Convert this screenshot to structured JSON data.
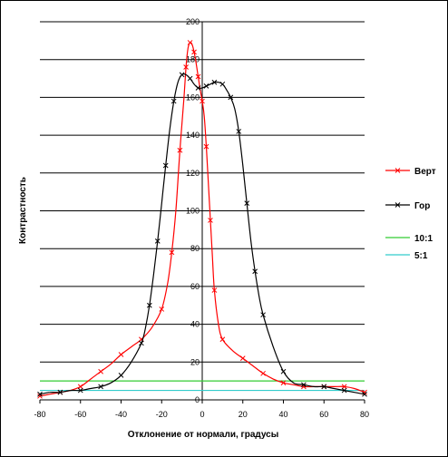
{
  "chart_data": {
    "type": "line",
    "xlabel": "Отклонение от нормали, градусы",
    "ylabel": "Контрастность",
    "xlim": [
      -80,
      80
    ],
    "ylim": [
      0,
      200
    ],
    "xticks": [
      "-80",
      "-60",
      "-40",
      "-20",
      "0",
      "20",
      "40",
      "60",
      "80"
    ],
    "yticks": [
      "0",
      "20",
      "40",
      "60",
      "80",
      "100",
      "120",
      "140",
      "160",
      "180",
      "200"
    ],
    "grid": "horizontal",
    "legend_position": "right",
    "series": [
      {
        "name": "Верт",
        "color": "#ff0000",
        "marker": "x",
        "x": [
          -80,
          -75,
          -70,
          -65,
          -60,
          -55,
          -50,
          -45,
          -40,
          -35,
          -30,
          -25,
          -20,
          -17,
          -15,
          -13,
          -11,
          -9,
          -8,
          -7,
          -6,
          -5,
          -4,
          -3,
          -2,
          -1,
          0,
          1,
          2,
          3,
          4,
          5,
          6,
          8,
          10,
          15,
          20,
          25,
          30,
          35,
          40,
          45,
          50,
          55,
          60,
          65,
          70,
          75,
          80
        ],
        "y": [
          2,
          3,
          4,
          5,
          7,
          11,
          15,
          19,
          24,
          28,
          32,
          38,
          48,
          62,
          78,
          100,
          132,
          160,
          176,
          186,
          189,
          188,
          184,
          178,
          171,
          164,
          158,
          150,
          134,
          115,
          95,
          76,
          58,
          40,
          32,
          26,
          22,
          18,
          14,
          11,
          9,
          8,
          7,
          7,
          7,
          7,
          7,
          6,
          4
        ]
      },
      {
        "name": "Гор",
        "color": "#000000",
        "marker": "x",
        "x": [
          -80,
          -75,
          -70,
          -65,
          -60,
          -55,
          -50,
          -45,
          -40,
          -35,
          -30,
          -28,
          -26,
          -24,
          -22,
          -20,
          -18,
          -16,
          -14,
          -12,
          -10,
          -8,
          -6,
          -4,
          -2,
          0,
          2,
          4,
          6,
          8,
          10,
          12,
          14,
          16,
          18,
          20,
          22,
          24,
          26,
          28,
          30,
          35,
          40,
          45,
          50,
          55,
          60,
          65,
          70,
          75,
          80
        ],
        "y": [
          3,
          4,
          4,
          5,
          5,
          6,
          7,
          9,
          13,
          20,
          30,
          38,
          50,
          66,
          84,
          104,
          124,
          143,
          158,
          168,
          172,
          172,
          170,
          167,
          165,
          165,
          166,
          167,
          168,
          168,
          167,
          164,
          160,
          154,
          142,
          124,
          104,
          84,
          68,
          55,
          45,
          28,
          15,
          9,
          8,
          7,
          7,
          6,
          5,
          4,
          3
        ]
      },
      {
        "name": "10:1",
        "color": "#33cc33",
        "marker": "none",
        "x": [
          -80,
          80
        ],
        "y": [
          10,
          10
        ]
      },
      {
        "name": "5:1",
        "color": "#33cccc",
        "marker": "none",
        "x": [
          -80,
          80
        ],
        "y": [
          5,
          5
        ]
      }
    ]
  }
}
